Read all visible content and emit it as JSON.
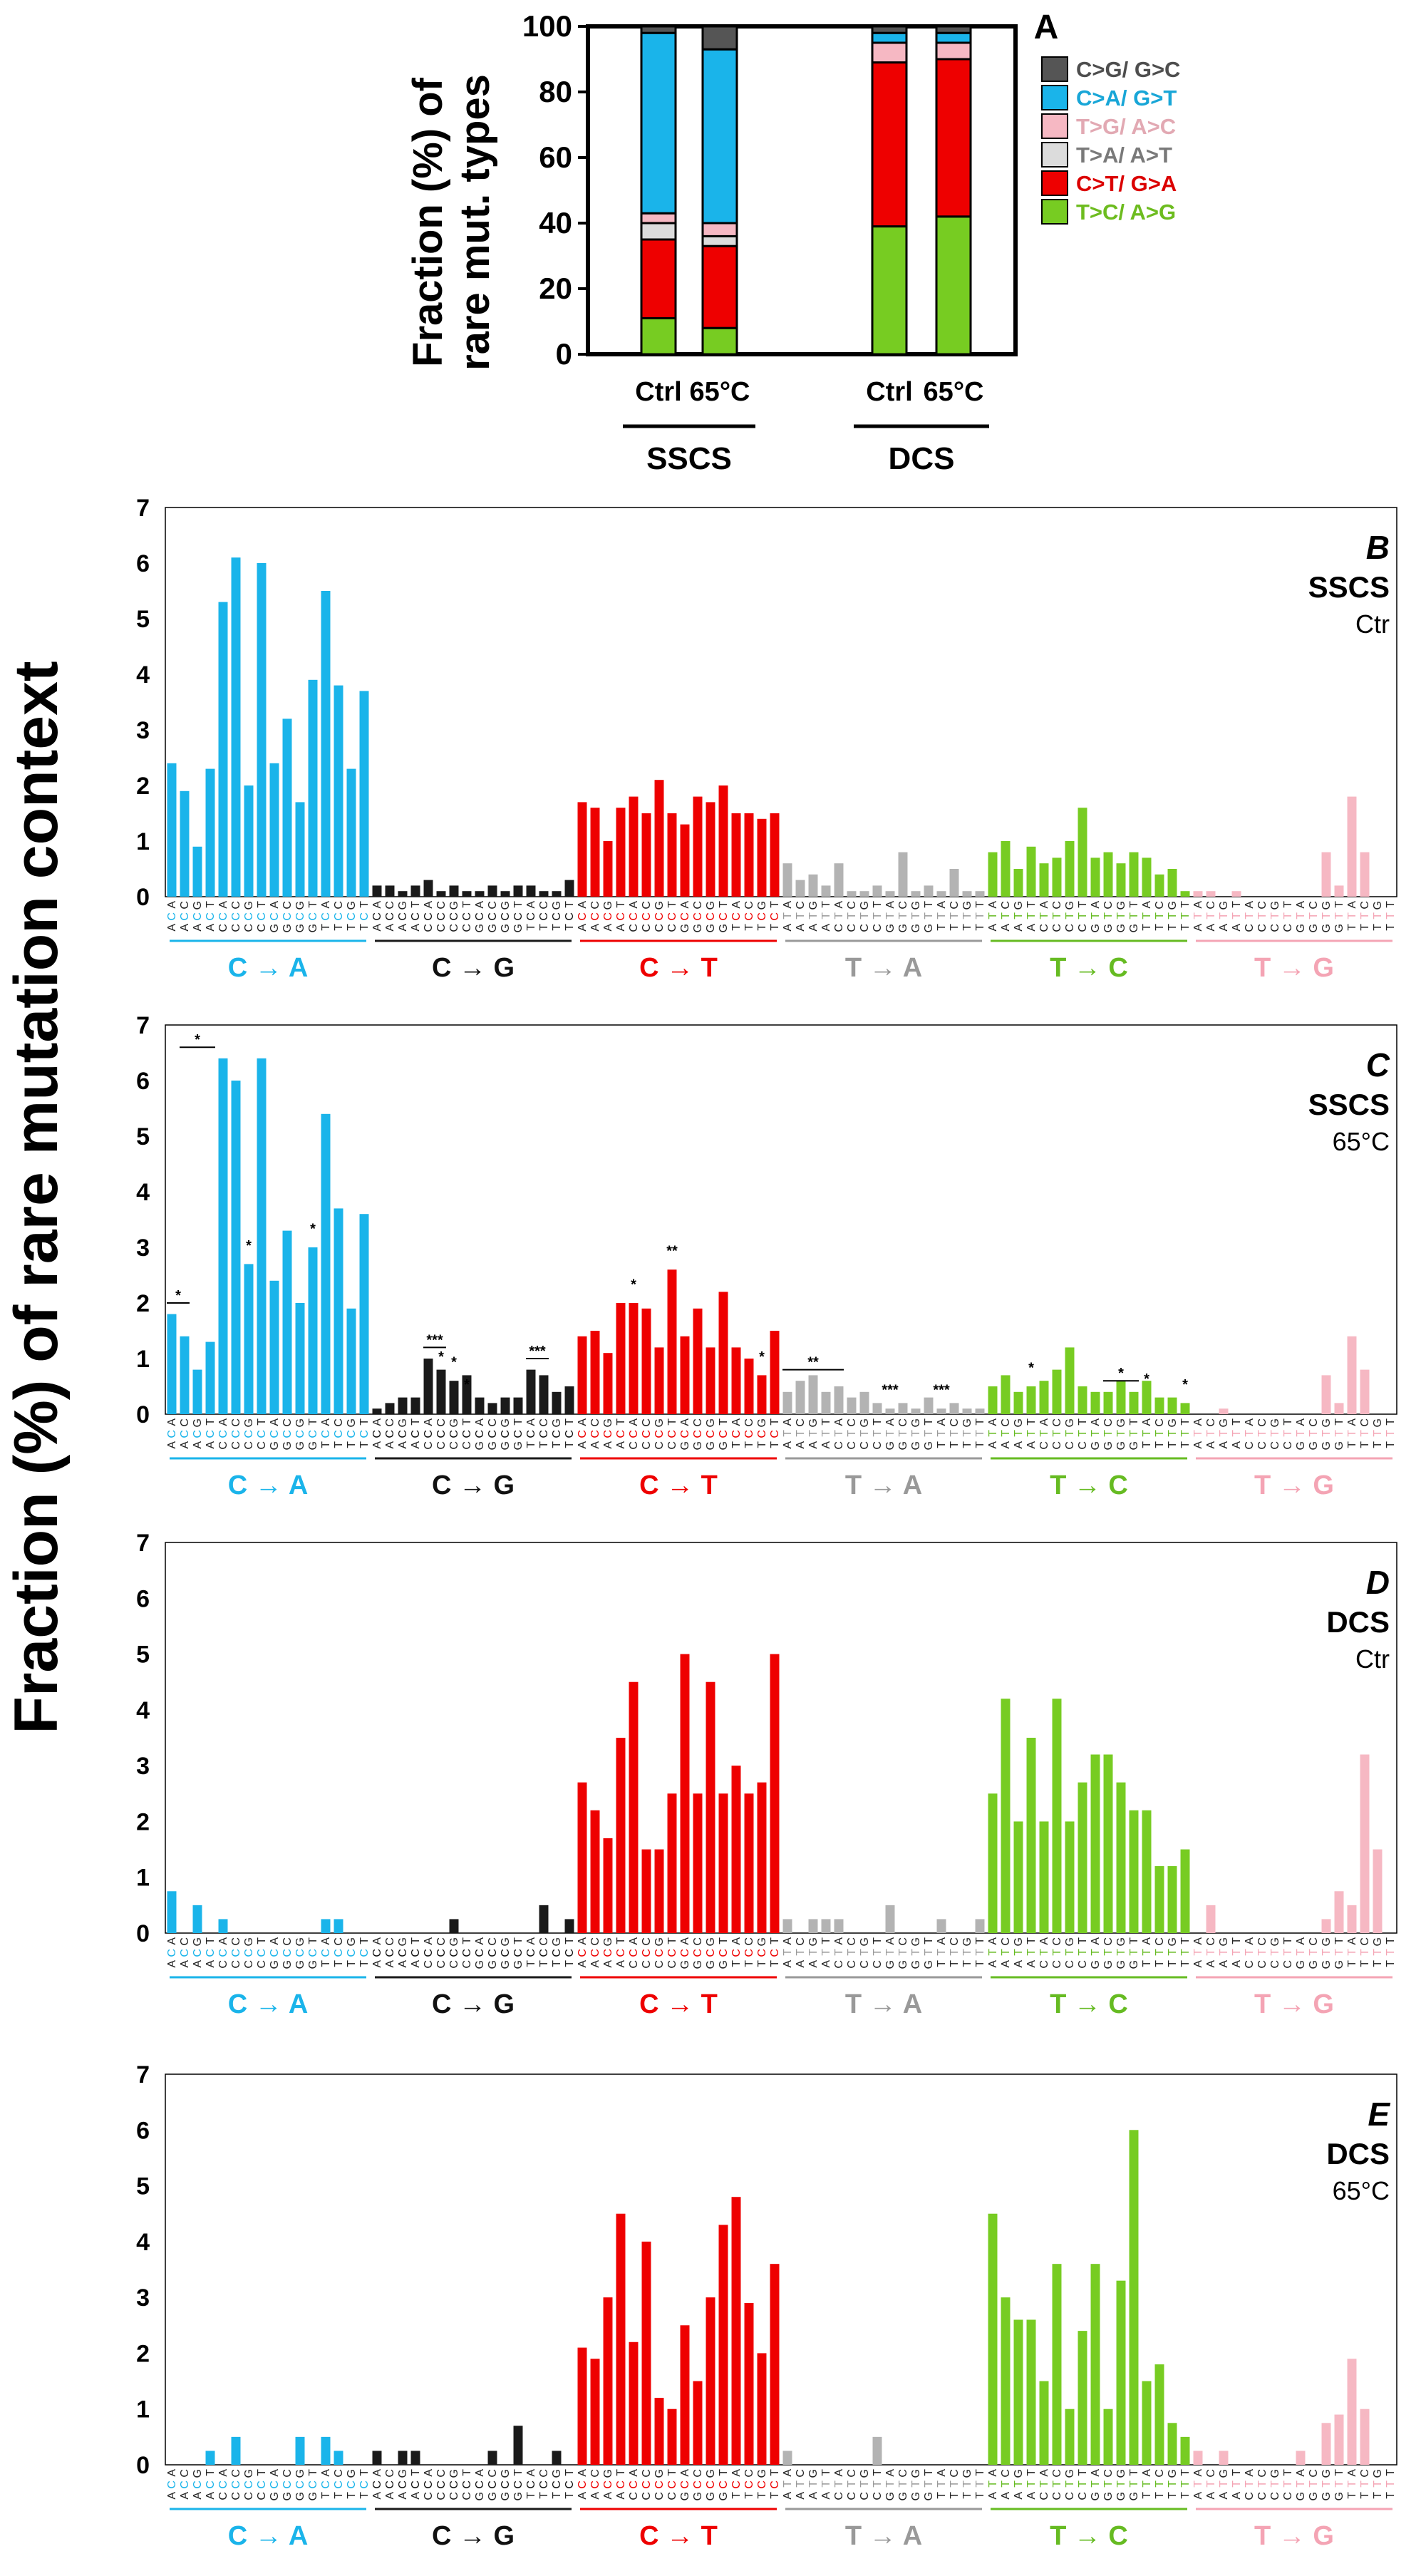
{
  "global_ylabel": "Fraction (%) of rare mutation context",
  "colors": {
    "CA": "#1ab4ea",
    "CG": "#1a1a1a",
    "CT": "#ee0000",
    "TA": "#b3b3b3",
    "TC": "#77cc22",
    "TG": "#f6b8c3",
    "AT_gray": "#dcdcdc",
    "CG_dark": "#555555"
  },
  "context_labels": {
    "five_prime": [
      "A",
      "A",
      "A",
      "A",
      "C",
      "C",
      "C",
      "C",
      "G",
      "G",
      "G",
      "G",
      "T",
      "T",
      "T",
      "T"
    ],
    "three_prime": [
      "A",
      "C",
      "G",
      "T",
      "A",
      "C",
      "G",
      "T",
      "A",
      "C",
      "G",
      "T",
      "A",
      "C",
      "G",
      "T"
    ],
    "middle_by_group": [
      "C",
      "C",
      "C",
      "T",
      "T",
      "T"
    ]
  },
  "chart_data": [
    {
      "panel": "A",
      "type": "bar",
      "stacked": true,
      "ylabel": "Fraction (%) of rare mut. types",
      "ylim": [
        0,
        100
      ],
      "yticks": [
        0,
        20,
        40,
        60,
        80,
        100
      ],
      "categories": [
        "Ctrl",
        "65°C",
        "Ctrl",
        "65°C"
      ],
      "groups": [
        {
          "label": "SSCS",
          "categories": [
            "Ctrl",
            "65°C"
          ]
        },
        {
          "label": "DCS",
          "categories": [
            "Ctrl",
            "65°C"
          ]
        }
      ],
      "legend_position": "right",
      "series": [
        {
          "name": "T>C/ A>G",
          "color": "#77cc22",
          "values": [
            11,
            8,
            39,
            42
          ]
        },
        {
          "name": "C>T/ G>A",
          "color": "#ee0000",
          "values": [
            24,
            25,
            50,
            48
          ]
        },
        {
          "name": "T>A/ A>T",
          "color": "#dcdcdc",
          "values": [
            5,
            3,
            0,
            0
          ]
        },
        {
          "name": "T>G/ A>C",
          "color": "#f6b8c3",
          "values": [
            3,
            4,
            6,
            5
          ]
        },
        {
          "name": "C>A/ G>T",
          "color": "#1ab4ea",
          "values": [
            55,
            53,
            3,
            3
          ]
        },
        {
          "name": "C>G/ G>C",
          "color": "#555555",
          "values": [
            2,
            7,
            2,
            2
          ]
        }
      ]
    },
    {
      "panel": "B",
      "tag": "SSCS",
      "condition": "Ctr",
      "type": "bar",
      "ylim": [
        0,
        7
      ],
      "yticks": [
        0,
        1,
        2,
        3,
        4,
        5,
        6,
        7
      ],
      "groups": [
        {
          "label": "C → A",
          "values": [
            2.4,
            1.9,
            0.9,
            2.3,
            5.3,
            6.1,
            2.0,
            6.0,
            2.4,
            3.2,
            1.7,
            3.9,
            5.5,
            3.8,
            2.3,
            3.7
          ]
        },
        {
          "label": "C → G",
          "values": [
            0.2,
            0.2,
            0.1,
            0.2,
            0.3,
            0.1,
            0.2,
            0.1,
            0.1,
            0.2,
            0.1,
            0.2,
            0.2,
            0.1,
            0.1,
            0.3
          ]
        },
        {
          "label": "C → T",
          "values": [
            1.7,
            1.6,
            1.0,
            1.6,
            1.8,
            1.5,
            2.1,
            1.5,
            1.3,
            1.8,
            1.7,
            2.0,
            1.5,
            1.5,
            1.4,
            1.5
          ]
        },
        {
          "label": "T → A",
          "values": [
            0.6,
            0.3,
            0.4,
            0.2,
            0.6,
            0.1,
            0.1,
            0.2,
            0.1,
            0.8,
            0.1,
            0.2,
            0.1,
            0.5,
            0.1,
            0.1
          ]
        },
        {
          "label": "T → C",
          "values": [
            0.8,
            1.0,
            0.5,
            0.9,
            0.6,
            0.7,
            1.0,
            1.6,
            0.7,
            0.8,
            0.6,
            0.8,
            0.7,
            0.4,
            0.5,
            0.1
          ]
        },
        {
          "label": "T → G",
          "values": [
            0.1,
            0.1,
            0.0,
            0.1,
            0.0,
            0.0,
            0.0,
            0.0,
            0.0,
            0.0,
            0.8,
            0.2,
            1.8,
            0.8,
            0.0,
            0.0
          ]
        }
      ],
      "annotations": []
    },
    {
      "panel": "C",
      "tag": "SSCS",
      "condition": "65°C",
      "type": "bar",
      "ylim": [
        0,
        7
      ],
      "yticks": [
        0,
        1,
        2,
        3,
        4,
        5,
        6,
        7
      ],
      "groups": [
        {
          "label": "C → A",
          "values": [
            1.8,
            1.4,
            0.8,
            1.3,
            6.4,
            6.0,
            2.7,
            6.4,
            2.4,
            3.3,
            2.0,
            3.0,
            5.4,
            3.7,
            1.9,
            3.6
          ]
        },
        {
          "label": "C → G",
          "values": [
            0.1,
            0.2,
            0.3,
            0.3,
            1.0,
            0.8,
            0.6,
            0.7,
            0.3,
            0.2,
            0.3,
            0.3,
            0.8,
            0.7,
            0.4,
            0.5
          ]
        },
        {
          "label": "C → T",
          "values": [
            1.4,
            1.5,
            1.1,
            2.0,
            2.0,
            1.9,
            1.2,
            2.6,
            1.4,
            1.9,
            1.2,
            2.2,
            1.2,
            1.0,
            0.7,
            1.5
          ]
        },
        {
          "label": "T → A",
          "values": [
            0.4,
            0.6,
            0.7,
            0.4,
            0.5,
            0.3,
            0.4,
            0.2,
            0.1,
            0.2,
            0.1,
            0.3,
            0.1,
            0.2,
            0.1,
            0.1
          ]
        },
        {
          "label": "T → C",
          "values": [
            0.5,
            0.7,
            0.4,
            0.5,
            0.6,
            0.8,
            1.2,
            0.5,
            0.4,
            0.4,
            0.6,
            0.4,
            0.6,
            0.3,
            0.3,
            0.2
          ]
        },
        {
          "label": "T → G",
          "values": [
            0.0,
            0.0,
            0.1,
            0.0,
            0.0,
            0.0,
            0.0,
            0.0,
            0.0,
            0.0,
            0.7,
            0.2,
            1.4,
            0.8,
            0.0,
            0.0
          ]
        }
      ],
      "annotations": [
        {
          "group": 0,
          "from": 0,
          "to": 1,
          "y": 2.0,
          "text": "*"
        },
        {
          "group": 0,
          "from": 1,
          "to": 3,
          "y": 6.6,
          "text": "*"
        },
        {
          "group": 0,
          "from": 6,
          "to": 6,
          "y": 2.9,
          "text": "*"
        },
        {
          "group": 0,
          "from": 11,
          "to": 11,
          "y": 3.2,
          "text": "*"
        },
        {
          "group": 1,
          "from": 4,
          "to": 5,
          "y": 1.2,
          "text": "***"
        },
        {
          "group": 1,
          "from": 5,
          "to": 5,
          "y": 0.9,
          "text": "*"
        },
        {
          "group": 1,
          "from": 6,
          "to": 6,
          "y": 0.8,
          "text": "*"
        },
        {
          "group": 1,
          "from": 7,
          "to": 7,
          "y": 0.4,
          "text": "*"
        },
        {
          "group": 1,
          "from": 12,
          "to": 13,
          "y": 1.0,
          "text": "***"
        },
        {
          "group": 2,
          "from": 4,
          "to": 4,
          "y": 2.2,
          "text": "*"
        },
        {
          "group": 2,
          "from": 7,
          "to": 7,
          "y": 2.8,
          "text": "**"
        },
        {
          "group": 2,
          "from": 14,
          "to": 14,
          "y": 0.9,
          "text": "*"
        },
        {
          "group": 3,
          "from": 0,
          "to": 4,
          "y": 0.8,
          "text": "**"
        },
        {
          "group": 3,
          "from": 8,
          "to": 8,
          "y": 0.3,
          "text": "***"
        },
        {
          "group": 3,
          "from": 12,
          "to": 12,
          "y": 0.3,
          "text": "***"
        },
        {
          "group": 4,
          "from": 3,
          "to": 3,
          "y": 0.7,
          "text": "*"
        },
        {
          "group": 4,
          "from": 9,
          "to": 11,
          "y": 0.6,
          "text": "*"
        },
        {
          "group": 4,
          "from": 12,
          "to": 12,
          "y": 0.5,
          "text": "*"
        },
        {
          "group": 4,
          "from": 15,
          "to": 15,
          "y": 0.4,
          "text": "*"
        }
      ]
    },
    {
      "panel": "D",
      "tag": "DCS",
      "condition": "Ctr",
      "type": "bar",
      "ylim": [
        0,
        7
      ],
      "yticks": [
        0,
        1,
        2,
        3,
        4,
        5,
        6,
        7
      ],
      "groups": [
        {
          "label": "C → A",
          "values": [
            0.75,
            0,
            0.5,
            0,
            0.25,
            0,
            0,
            0,
            0,
            0,
            0,
            0,
            0.25,
            0.25,
            0,
            0
          ]
        },
        {
          "label": "C → G",
          "values": [
            0,
            0,
            0,
            0,
            0,
            0,
            0.25,
            0,
            0,
            0,
            0,
            0,
            0,
            0.5,
            0,
            0.25
          ]
        },
        {
          "label": "C → T",
          "values": [
            2.7,
            2.2,
            1.7,
            3.5,
            4.5,
            1.5,
            1.5,
            2.5,
            5.0,
            2.5,
            4.5,
            2.5,
            3.0,
            2.5,
            2.7,
            5.0
          ]
        },
        {
          "label": "T → A",
          "values": [
            0.25,
            0,
            0.25,
            0.25,
            0.25,
            0,
            0,
            0,
            0.5,
            0,
            0,
            0,
            0.25,
            0,
            0,
            0.25
          ]
        },
        {
          "label": "T → C",
          "values": [
            2.5,
            4.2,
            2.0,
            3.5,
            2.0,
            4.2,
            2.0,
            2.7,
            3.2,
            3.2,
            2.7,
            2.2,
            2.2,
            1.2,
            1.2,
            1.5
          ]
        },
        {
          "label": "T → G",
          "values": [
            0,
            0.5,
            0,
            0,
            0,
            0,
            0,
            0,
            0,
            0,
            0.25,
            0.75,
            0.5,
            3.2,
            1.5,
            0
          ]
        }
      ],
      "annotations": []
    },
    {
      "panel": "E",
      "tag": "DCS",
      "condition": "65°C",
      "type": "bar",
      "ylim": [
        0,
        7
      ],
      "yticks": [
        0,
        1,
        2,
        3,
        4,
        5,
        6,
        7
      ],
      "groups": [
        {
          "label": "C → A",
          "values": [
            0,
            0,
            0,
            0.25,
            0,
            0.5,
            0,
            0,
            0,
            0,
            0.5,
            0,
            0.5,
            0.25,
            0,
            0
          ]
        },
        {
          "label": "C → G",
          "values": [
            0.25,
            0,
            0.25,
            0.25,
            0,
            0,
            0,
            0,
            0,
            0.25,
            0,
            0.7,
            0,
            0,
            0.25,
            0
          ]
        },
        {
          "label": "C → T",
          "values": [
            2.1,
            1.9,
            3.0,
            4.5,
            2.2,
            4.0,
            1.2,
            1.0,
            2.5,
            1.5,
            3.0,
            4.3,
            4.8,
            2.9,
            2.0,
            3.6
          ]
        },
        {
          "label": "T → A",
          "values": [
            0.25,
            0,
            0,
            0,
            0,
            0,
            0,
            0.5,
            0,
            0,
            0,
            0,
            0,
            0,
            0,
            0
          ]
        },
        {
          "label": "T → C",
          "values": [
            4.5,
            3.0,
            2.6,
            2.6,
            1.5,
            3.6,
            1.0,
            2.4,
            3.6,
            1.0,
            3.3,
            6.0,
            1.5,
            1.8,
            0.75,
            0.5
          ]
        },
        {
          "label": "T → G",
          "values": [
            0.25,
            0,
            0.25,
            0,
            0,
            0,
            0,
            0,
            0.25,
            0,
            0.75,
            0.9,
            1.9,
            1.0,
            0,
            0
          ]
        }
      ],
      "annotations": []
    }
  ]
}
